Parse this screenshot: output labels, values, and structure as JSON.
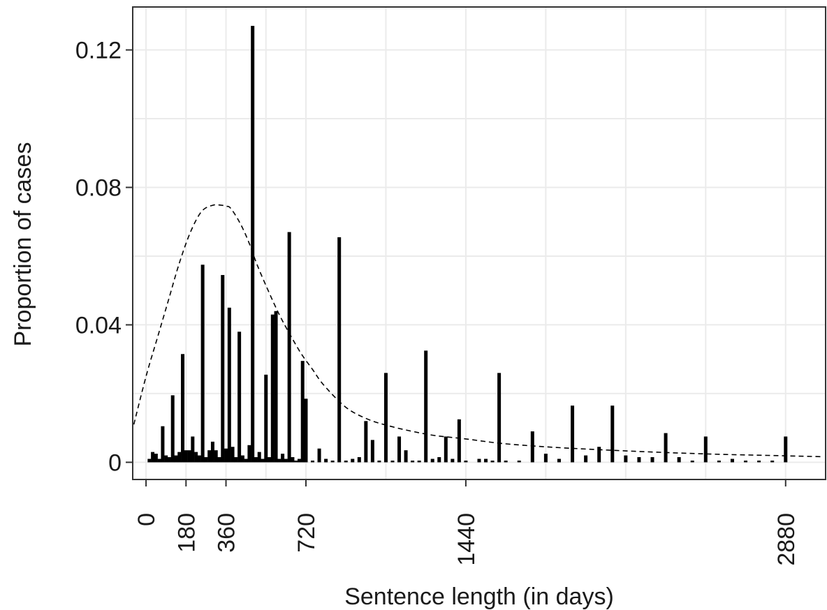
{
  "chart_data": {
    "type": "bar",
    "xlabel": "Sentence length (in days)",
    "ylabel": "Proportion of cases",
    "xlim": [
      -60,
      3060
    ],
    "ylim": [
      -0.005,
      0.1325
    ],
    "x_ticks": [
      0,
      180,
      360,
      720,
      1440,
      2880
    ],
    "x_tick_labels": [
      "0",
      "180",
      "360",
      "720",
      "1440",
      "2880"
    ],
    "x_minor_grid": [
      540,
      1080,
      1800,
      2160,
      2520
    ],
    "y_ticks": [
      0,
      0.04,
      0.08,
      0.12
    ],
    "y_tick_labels": [
      "0",
      "0.04",
      "0.08",
      "0.12"
    ],
    "y_minor_grid": [
      0.02,
      0.06,
      0.1
    ],
    "grid": true,
    "legend": "none",
    "colors": {
      "bars": "#000000",
      "density": "#000000",
      "grid": "#ebebeb",
      "border": "#333333",
      "text": "#1a1a1a"
    },
    "series": [
      {
        "type": "bar",
        "x": [
          15,
          30,
          45,
          60,
          75,
          90,
          105,
          120,
          135,
          150,
          165,
          180,
          195,
          210,
          225,
          240,
          255,
          270,
          285,
          300,
          315,
          330,
          345,
          360,
          375,
          390,
          405,
          420,
          435,
          450,
          465,
          480,
          495,
          510,
          525,
          540,
          555,
          570,
          585,
          600,
          615,
          630,
          645,
          660,
          675,
          690,
          705,
          720,
          750,
          780,
          810,
          840,
          870,
          900,
          930,
          960,
          990,
          1020,
          1050,
          1080,
          1110,
          1140,
          1170,
          1200,
          1230,
          1260,
          1290,
          1320,
          1350,
          1380,
          1410,
          1440,
          1500,
          1530,
          1560,
          1590,
          1620,
          1680,
          1740,
          1800,
          1860,
          1920,
          1980,
          2040,
          2100,
          2160,
          2220,
          2280,
          2340,
          2400,
          2460,
          2520,
          2580,
          2640,
          2700,
          2760,
          2820,
          2880
        ],
        "values": [
          0.001,
          0.003,
          0.0025,
          0.001,
          0.0105,
          0.002,
          0.0015,
          0.0195,
          0.002,
          0.003,
          0.0315,
          0.0035,
          0.0035,
          0.0075,
          0.003,
          0.002,
          0.0575,
          0.0015,
          0.0035,
          0.006,
          0.0035,
          0.0015,
          0.0545,
          0.004,
          0.045,
          0.0045,
          0.0015,
          0.038,
          0.002,
          0.001,
          0.005,
          0.127,
          0.0015,
          0.003,
          0.001,
          0.0255,
          0.0015,
          0.043,
          0.044,
          0.001,
          0.0025,
          0.001,
          0.067,
          0.0015,
          0.0005,
          0.001,
          0.0295,
          0.0185,
          0.0005,
          0.004,
          0.001,
          0.0005,
          0.0655,
          0.0005,
          0.001,
          0.0015,
          0.012,
          0.0065,
          0.0005,
          0.026,
          0.0005,
          0.0075,
          0.0035,
          0.0005,
          0.0005,
          0.0325,
          0.001,
          0.0015,
          0.0075,
          0.001,
          0.0125,
          0.0005,
          0.001,
          0.001,
          0.0005,
          0.026,
          0.0005,
          0.0005,
          0.009,
          0.0025,
          0.001,
          0.0165,
          0.002,
          0.0045,
          0.0165,
          0.002,
          0.0015,
          0.0015,
          0.0085,
          0.0015,
          0.0005,
          0.0075,
          0.0005,
          0.001,
          0.0005,
          0.0005,
          0.0005,
          0.0075
        ]
      },
      {
        "type": "line",
        "style": "dashed",
        "x": [
          -55,
          0,
          50,
          100,
          150,
          200,
          250,
          300,
          340,
          360,
          380,
          420,
          460,
          500,
          550,
          600,
          650,
          700,
          750,
          800,
          900,
          1000,
          1100,
          1200,
          1300,
          1440,
          1600,
          1800,
          2000,
          2200,
          2400,
          2600,
          2800,
          3000,
          3050
        ],
        "values": [
          0.011,
          0.025,
          0.036,
          0.047,
          0.058,
          0.067,
          0.073,
          0.0748,
          0.0748,
          0.0745,
          0.074,
          0.07,
          0.0645,
          0.0575,
          0.05,
          0.043,
          0.037,
          0.0315,
          0.027,
          0.0225,
          0.016,
          0.0125,
          0.0105,
          0.009,
          0.0078,
          0.0068,
          0.0055,
          0.0045,
          0.0038,
          0.0032,
          0.0027,
          0.0023,
          0.002,
          0.0017,
          0.0016
        ]
      }
    ]
  }
}
